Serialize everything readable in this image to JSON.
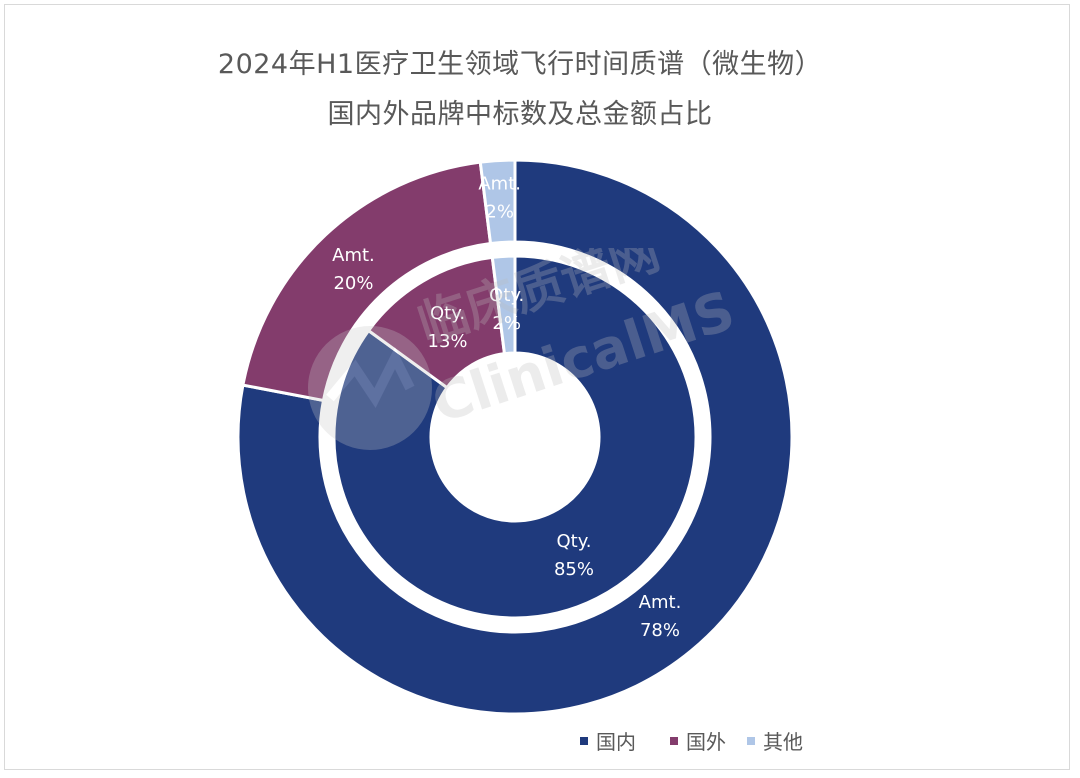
{
  "chart_data": {
    "type": "pie",
    "style": "nested-donut",
    "title": "2024年H1医疗卫生领域飞行时间质谱（微生物）",
    "subtitle": "国内外品牌中标数及总金额占比",
    "categories": [
      "国内",
      "国外",
      "其他"
    ],
    "colors": [
      "#1F3A7D",
      "#833C6C",
      "#AFC6E7"
    ],
    "series": [
      {
        "ring": "outer",
        "label_prefix": "Amt.",
        "values": [
          78,
          20,
          2
        ]
      },
      {
        "ring": "inner",
        "label_prefix": "Qty.",
        "values": [
          85,
          13,
          2
        ]
      }
    ],
    "legend": "bottom-right"
  },
  "watermark": {
    "text_cn": "临床质谱网",
    "text_en": "ClinicalMS"
  }
}
